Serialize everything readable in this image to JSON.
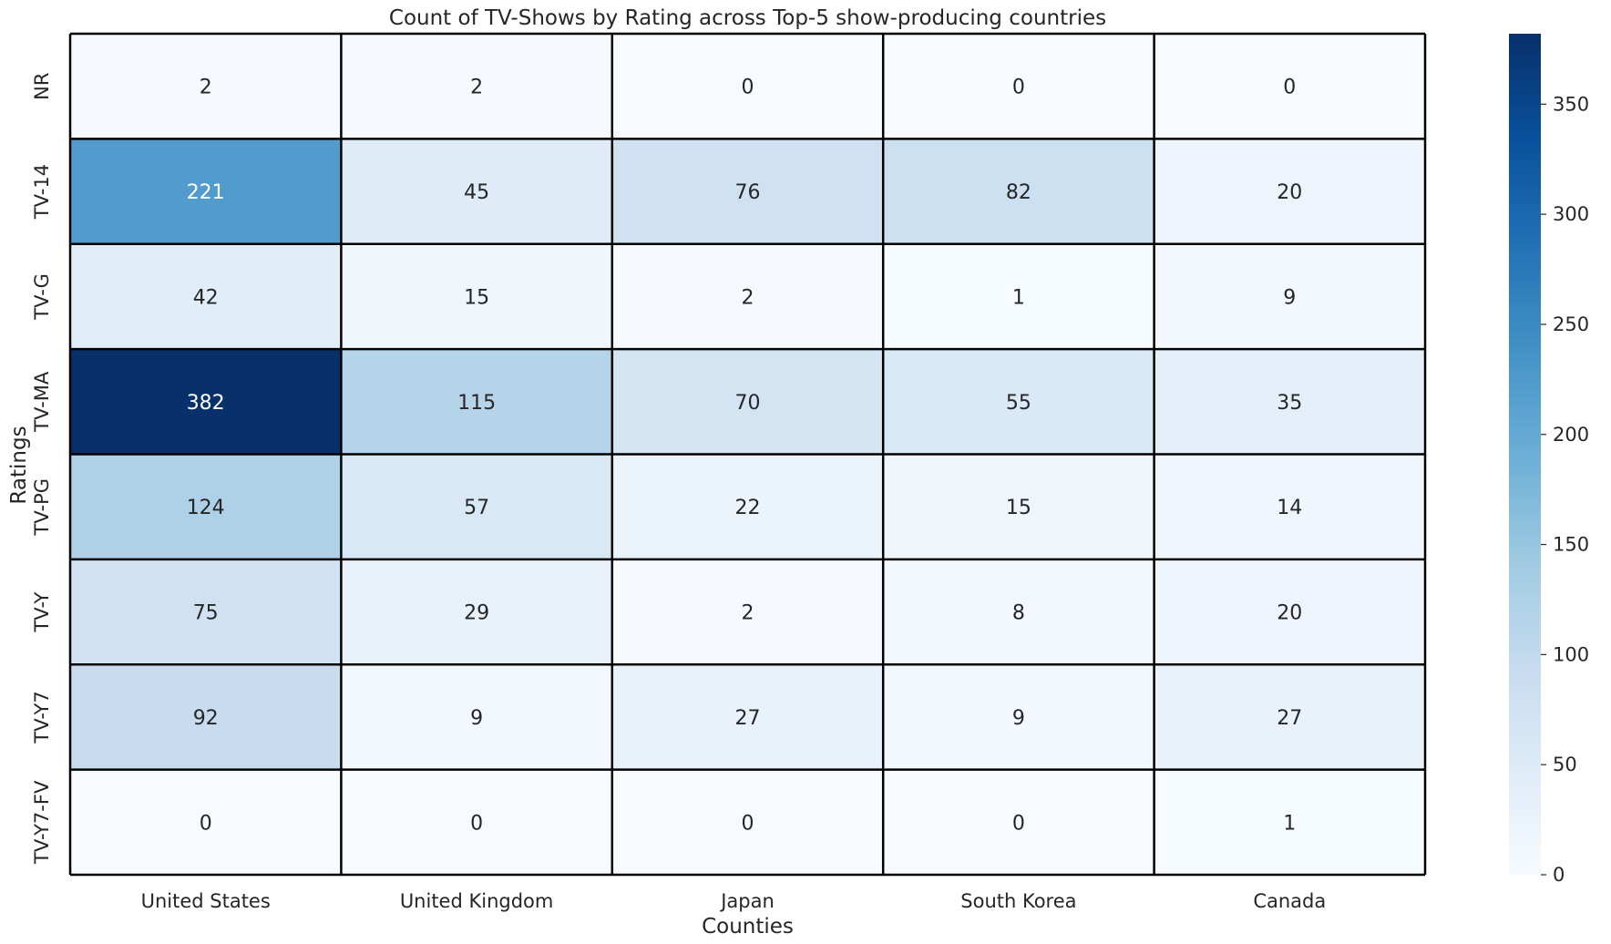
{
  "chart_data": {
    "type": "heatmap",
    "title": "Count of TV-Shows by Rating across Top-5 show-producing countries",
    "xlabel": "Counties",
    "ylabel": "Ratings",
    "x_categories": [
      "United States",
      "United Kingdom",
      "Japan",
      "South Korea",
      "Canada"
    ],
    "y_categories": [
      "NR",
      "TV-14",
      "TV-G",
      "TV-MA",
      "TV-PG",
      "TV-Y",
      "TV-Y7",
      "TV-Y7-FV"
    ],
    "values": [
      [
        2,
        2,
        0,
        0,
        0
      ],
      [
        221,
        45,
        76,
        82,
        20
      ],
      [
        42,
        15,
        2,
        1,
        9
      ],
      [
        382,
        115,
        70,
        55,
        35
      ],
      [
        124,
        57,
        22,
        15,
        14
      ],
      [
        75,
        29,
        2,
        8,
        20
      ],
      [
        92,
        9,
        27,
        9,
        27
      ],
      [
        0,
        0,
        0,
        0,
        1
      ]
    ],
    "colormap": "Blues",
    "vmin": 0,
    "vmax": 382,
    "colorbar_ticks": [
      0,
      50,
      100,
      150,
      200,
      250,
      300,
      350
    ],
    "gridlines": true,
    "grid_color": "#000000",
    "annotations": true
  }
}
